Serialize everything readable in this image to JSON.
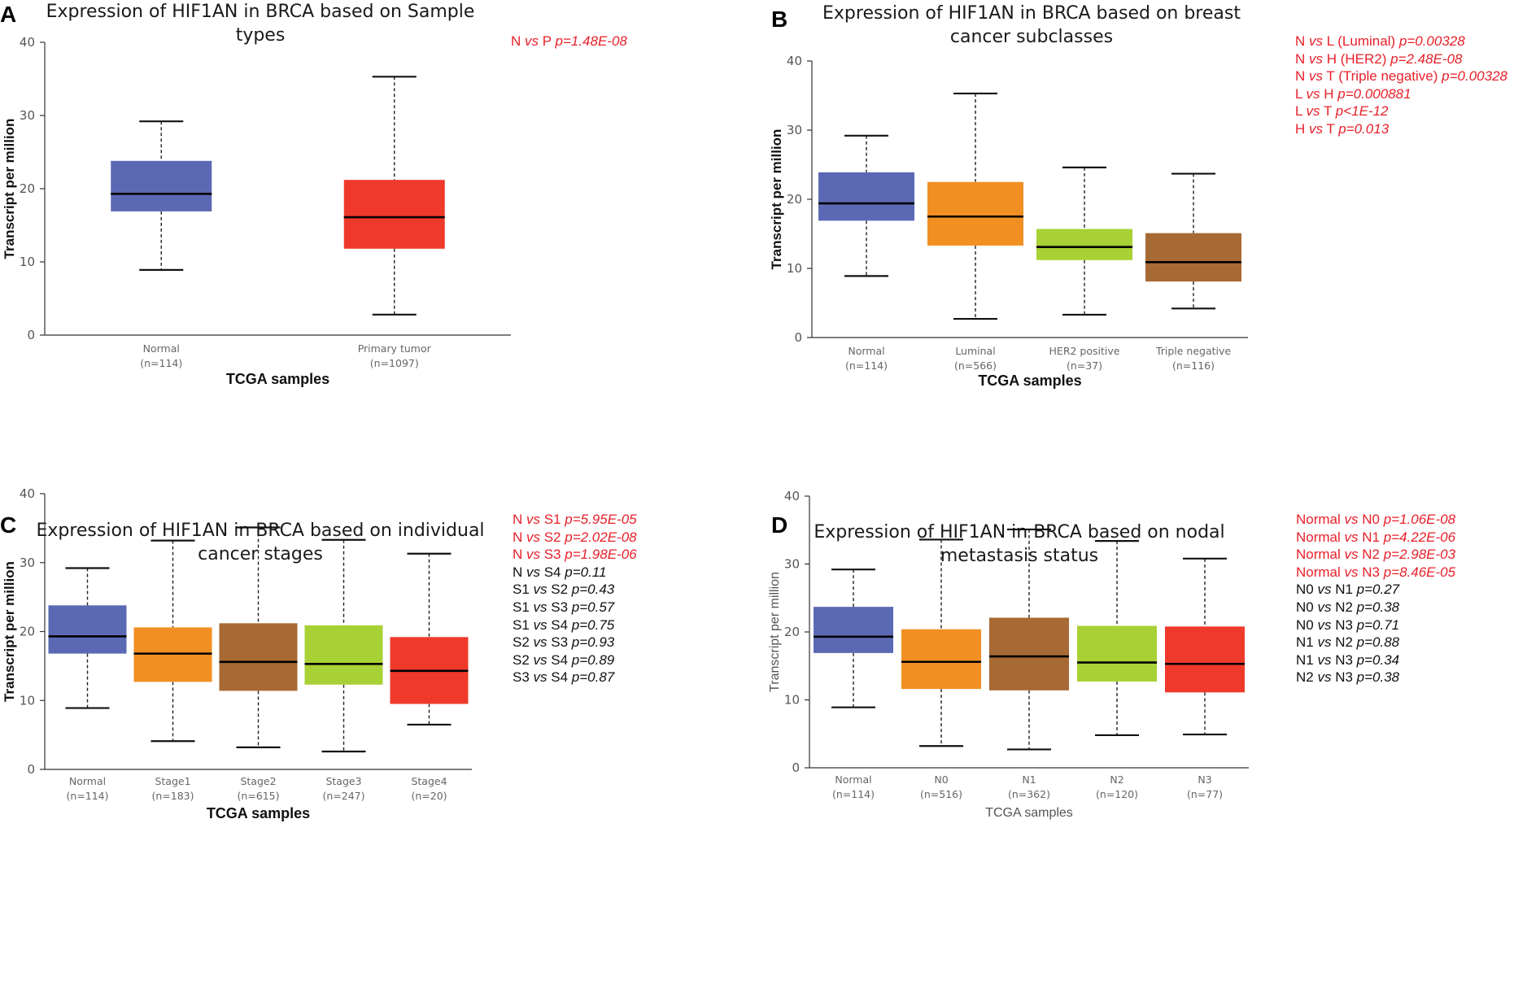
{
  "chart_data": [
    {
      "letter": "A",
      "type": "boxplot",
      "title": "Expression of HIF1AN in BRCA based on Sample types",
      "xlabel": "TCGA samples",
      "ylabel": "Transcript per million",
      "ylim": [
        0,
        40
      ],
      "yticks": [
        0,
        10,
        20,
        30,
        40
      ],
      "categories": [
        {
          "name": "Normal",
          "n": "(n=114)",
          "color": "#5b69b5",
          "min": 8.9,
          "q1": 16.9,
          "median": 19.3,
          "q3": 23.8,
          "max": 29.2
        },
        {
          "name": "Primary tumor",
          "n": "(n=1097)",
          "color": "#ef3a2b",
          "min": 2.8,
          "q1": 11.8,
          "median": 16.1,
          "q3": 21.2,
          "max": 35.3
        }
      ],
      "stats": [
        {
          "a": "N",
          "vs": "vs",
          "b": "P",
          "p": "p=1.48E-08",
          "significant": true
        }
      ]
    },
    {
      "letter": "B",
      "type": "boxplot",
      "title": "Expression of HIF1AN in BRCA based on breast cancer subclasses",
      "xlabel": "TCGA samples",
      "ylabel": "Transcript per million",
      "ylim": [
        0,
        40
      ],
      "yticks": [
        0,
        10,
        20,
        30,
        40
      ],
      "categories": [
        {
          "name": "Normal",
          "n": "(n=114)",
          "color": "#5b69b5",
          "min": 8.9,
          "q1": 16.9,
          "median": 19.4,
          "q3": 23.9,
          "max": 29.2
        },
        {
          "name": "Luminal",
          "n": "(n=566)",
          "color": "#f18f23",
          "min": 2.7,
          "q1": 13.3,
          "median": 17.5,
          "q3": 22.5,
          "max": 35.3
        },
        {
          "name": "HER2 positive",
          "n": "(n=37)",
          "color": "#a8d135",
          "min": 3.3,
          "q1": 11.2,
          "median": 13.1,
          "q3": 15.7,
          "max": 24.6
        },
        {
          "name": "Triple negative",
          "n": "(n=116)",
          "color": "#a86a34",
          "min": 4.2,
          "q1": 8.1,
          "median": 10.9,
          "q3": 15.1,
          "max": 23.7
        }
      ],
      "stats": [
        {
          "a": "N",
          "vs": "vs",
          "b": "L (Luminal)",
          "p": "p=0.00328",
          "significant": true
        },
        {
          "a": "N",
          "vs": "vs",
          "b": "H (HER2)",
          "p": "p=2.48E-08",
          "significant": true
        },
        {
          "a": "N",
          "vs": "vs",
          "b": "T (Triple negative)",
          "p": "p=0.00328",
          "significant": true
        },
        {
          "a": "L",
          "vs": "vs",
          "b": "H",
          "p": "p=0.000881",
          "significant": true
        },
        {
          "a": "L",
          "vs": "vs",
          "b": "T",
          "p": "p<1E-12",
          "significant": true
        },
        {
          "a": "H",
          "vs": "vs",
          "b": "T",
          "p": "p=0.013",
          "significant": true
        }
      ]
    },
    {
      "letter": "C",
      "type": "boxplot",
      "title": "Expression of HIF1AN in BRCA based on individual cancer stages",
      "xlabel": "TCGA samples",
      "ylabel": "Transcript per million",
      "ylim": [
        0,
        40
      ],
      "yticks": [
        0,
        10,
        20,
        30,
        40
      ],
      "categories": [
        {
          "name": "Normal",
          "n": "(n=114)",
          "color": "#5b69b5",
          "min": 8.9,
          "q1": 16.8,
          "median": 19.3,
          "q3": 23.8,
          "max": 29.2
        },
        {
          "name": "Stage1",
          "n": "(n=183)",
          "color": "#f18f23",
          "min": 4.1,
          "q1": 12.7,
          "median": 16.8,
          "q3": 20.6,
          "max": 33.2
        },
        {
          "name": "Stage2",
          "n": "(n=615)",
          "color": "#a86a34",
          "min": 3.2,
          "q1": 11.4,
          "median": 15.6,
          "q3": 21.2,
          "max": 35.1
        },
        {
          "name": "Stage3",
          "n": "(n=247)",
          "color": "#a8d135",
          "min": 2.6,
          "q1": 12.3,
          "median": 15.3,
          "q3": 20.9,
          "max": 33.3
        },
        {
          "name": "Stage4",
          "n": "(n=20)",
          "color": "#ef3a2b",
          "min": 6.5,
          "q1": 9.5,
          "median": 14.3,
          "q3": 19.2,
          "max": 31.3
        }
      ],
      "stats": [
        {
          "a": "N",
          "vs": "vs",
          "b": "S1",
          "p": "p=5.95E-05",
          "significant": true
        },
        {
          "a": "N",
          "vs": "vs",
          "b": "S2",
          "p": "p=2.02E-08",
          "significant": true
        },
        {
          "a": "N",
          "vs": "vs",
          "b": "S3",
          "p": "p=1.98E-06",
          "significant": true
        },
        {
          "a": "N",
          "vs": "vs",
          "b": "S4",
          "p": "p=0.11",
          "significant": false
        },
        {
          "a": "S1",
          "vs": "vs",
          "b": "S2",
          "p": "p=0.43",
          "significant": false
        },
        {
          "a": "S1",
          "vs": "vs",
          "b": "S3",
          "p": "p=0.57",
          "significant": false
        },
        {
          "a": "S1",
          "vs": "vs",
          "b": "S4",
          "p": "p=0.75",
          "significant": false
        },
        {
          "a": "S2",
          "vs": "vs",
          "b": "S3",
          "p": "p=0.93",
          "significant": false
        },
        {
          "a": "S2",
          "vs": "vs",
          "b": "S4",
          "p": "p=0.89",
          "significant": false
        },
        {
          "a": "S3",
          "vs": "vs",
          "b": "S4",
          "p": "p=0.87",
          "significant": false
        }
      ]
    },
    {
      "letter": "D",
      "type": "boxplot",
      "title": "Expression of HIF1AN in BRCA based on nodal metastasis status",
      "xlabel": "TCGA samples",
      "ylabel": "Transcript per million",
      "ylim": [
        0,
        40
      ],
      "yticks": [
        0,
        10,
        20,
        30,
        40
      ],
      "categories": [
        {
          "name": "Normal",
          "n": "(n=114)",
          "color": "#5b69b5",
          "min": 8.9,
          "q1": 16.9,
          "median": 19.3,
          "q3": 23.7,
          "max": 29.2
        },
        {
          "name": "N0",
          "n": "(n=516)",
          "color": "#f18f23",
          "min": 3.2,
          "q1": 11.6,
          "median": 15.6,
          "q3": 20.4,
          "max": 33.6
        },
        {
          "name": "N1",
          "n": "(n=362)",
          "color": "#a86a34",
          "min": 2.7,
          "q1": 11.4,
          "median": 16.4,
          "q3": 22.1,
          "max": 35.1
        },
        {
          "name": "N2",
          "n": "(n=120)",
          "color": "#a8d135",
          "min": 4.8,
          "q1": 12.7,
          "median": 15.5,
          "q3": 20.9,
          "max": 33.4
        },
        {
          "name": "N3",
          "n": "(n=77)",
          "color": "#ef3a2b",
          "min": 4.9,
          "q1": 11.1,
          "median": 15.3,
          "q3": 20.8,
          "max": 30.8
        }
      ],
      "stats": [
        {
          "a": "Normal",
          "vs": "vs",
          "b": "N0",
          "p": "p=1.06E-08",
          "significant": true
        },
        {
          "a": "Normal",
          "vs": "vs",
          "b": "N1",
          "p": "p=4.22E-06",
          "significant": true
        },
        {
          "a": "Normal",
          "vs": "vs",
          "b": "N2",
          "p": "p=2.98E-03",
          "significant": true
        },
        {
          "a": "Normal",
          "vs": "vs",
          "b": "N3",
          "p": "p=8.46E-05",
          "significant": true
        },
        {
          "a": "N0",
          "vs": "vs",
          "b": "N1",
          "p": "p=0.27",
          "significant": false
        },
        {
          "a": "N0",
          "vs": "vs",
          "b": "N2",
          "p": "p=0.38",
          "significant": false
        },
        {
          "a": "N0",
          "vs": "vs",
          "b": "N3",
          "p": "p=0.71",
          "significant": false
        },
        {
          "a": "N1",
          "vs": "vs",
          "b": "N2",
          "p": "p=0.88",
          "significant": false
        },
        {
          "a": "N1",
          "vs": "vs",
          "b": "N3",
          "p": "p=0.34",
          "significant": false
        },
        {
          "a": "N2",
          "vs": "vs",
          "b": "N3",
          "p": "p=0.38",
          "significant": false
        }
      ]
    }
  ]
}
